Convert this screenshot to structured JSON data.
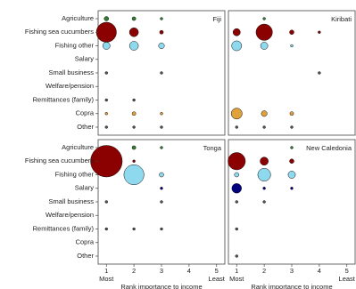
{
  "chart_data": {
    "type": "bubble",
    "categories": [
      "Agriculture",
      "Fishing sea cucumbers",
      "Fishing other",
      "Salary",
      "Small business",
      "Welfare/pension",
      "Remittances (family)",
      "Copra",
      "Other"
    ],
    "colors": [
      "#2e7d32",
      "#8b0000",
      "#8fd9ee",
      "#00007f",
      "#555555",
      "#555555",
      "#555555",
      "#e0a03a",
      "#555555"
    ],
    "xlabel": "Rank importance to income",
    "xlim": [
      0.7,
      5.3
    ],
    "xticks": [
      1,
      2,
      3,
      4,
      5
    ],
    "x_end_labels": [
      "Most",
      "Least"
    ],
    "panels": [
      {
        "title": "Fiji",
        "sizes": [
          [
            3,
            2,
            1,
            0,
            0
          ],
          [
            60,
            12,
            2,
            0,
            0
          ],
          [
            8,
            12,
            5,
            0,
            0
          ],
          [
            0,
            0,
            0,
            0,
            0
          ],
          [
            1,
            0,
            1,
            0,
            0
          ],
          [
            0,
            0,
            0,
            0,
            0
          ],
          [
            1,
            1,
            0,
            0,
            0
          ],
          [
            1,
            2,
            1,
            0,
            0
          ],
          [
            1,
            1,
            1,
            0,
            0
          ]
        ]
      },
      {
        "title": "Kiribati",
        "sizes": [
          [
            0,
            1,
            0,
            0,
            0
          ],
          [
            8,
            40,
            3,
            1,
            0
          ],
          [
            15,
            8,
            1,
            0,
            0
          ],
          [
            0,
            0,
            0,
            0,
            0
          ],
          [
            0,
            0,
            0,
            1,
            0
          ],
          [
            0,
            0,
            0,
            0,
            0
          ],
          [
            0,
            0,
            0,
            0,
            0
          ],
          [
            18,
            5,
            2,
            0,
            0
          ],
          [
            1,
            1,
            1,
            0,
            0
          ]
        ]
      },
      {
        "title": "Tonga",
        "sizes": [
          [
            1,
            2,
            1,
            0,
            0
          ],
          [
            150,
            1,
            0,
            0,
            0
          ],
          [
            0,
            60,
            3,
            0,
            0
          ],
          [
            0,
            0,
            1,
            0,
            0
          ],
          [
            1,
            0,
            1,
            0,
            0
          ],
          [
            0,
            0,
            0,
            0,
            0
          ],
          [
            1,
            1,
            1,
            0,
            0
          ],
          [
            0,
            0,
            0,
            0,
            0
          ],
          [
            0,
            0,
            0,
            0,
            0
          ]
        ]
      },
      {
        "title": "New Caledonia",
        "sizes": [
          [
            0,
            0,
            1,
            0,
            0
          ],
          [
            45,
            10,
            3,
            0,
            0
          ],
          [
            3,
            25,
            8,
            0,
            0
          ],
          [
            14,
            1,
            1,
            0,
            0
          ],
          [
            1,
            1,
            0,
            0,
            0
          ],
          [
            0,
            0,
            0,
            0,
            0
          ],
          [
            1,
            0,
            0,
            0,
            0
          ],
          [
            0,
            0,
            0,
            0,
            0
          ],
          [
            1,
            0,
            0,
            0,
            0
          ]
        ]
      }
    ]
  }
}
